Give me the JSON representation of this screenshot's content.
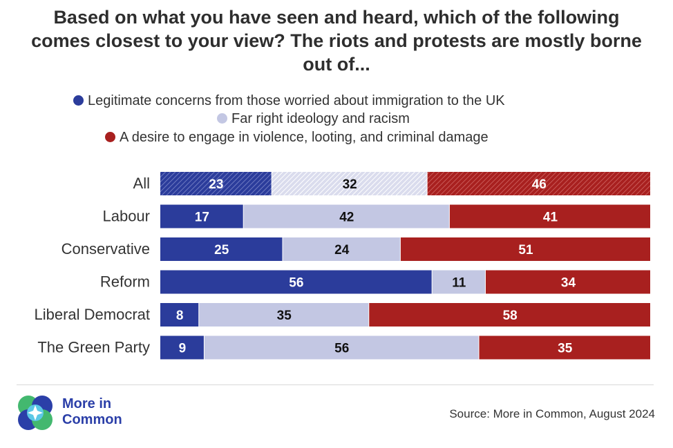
{
  "title": "Based on what you have seen and heard, which of the following comes closest to your view? The riots and protests are mostly borne out of...",
  "legend": [
    {
      "label": "Legitimate concerns from those worried about immigration to the UK",
      "color": "#2b3c9b"
    },
    {
      "label": "Far right ideology and racism",
      "color": "#c3c7e3"
    },
    {
      "label": "A desire to engage in violence, looting, and criminal damage",
      "color": "#a8201f"
    }
  ],
  "chart_data": {
    "type": "bar",
    "orientation": "horizontal",
    "stacked": true,
    "categories": [
      "All",
      "Labour",
      "Conservative",
      "Reform",
      "Liberal Democrat",
      "The Green Party"
    ],
    "series": [
      {
        "name": "Legitimate concerns from those worried about immigration to the UK",
        "color": "#2b3c9b",
        "label_color": "#ffffff",
        "values": [
          23,
          17,
          25,
          56,
          8,
          9
        ]
      },
      {
        "name": "Far right ideology and racism",
        "color": "#c3c7e3",
        "label_color": "#111111",
        "values": [
          32,
          42,
          24,
          11,
          35,
          56
        ]
      },
      {
        "name": "A desire to engage in violence, looting, and criminal damage",
        "color": "#a8201f",
        "label_color": "#ffffff",
        "values": [
          46,
          41,
          51,
          34,
          58,
          35
        ]
      }
    ],
    "hatched_categories": [
      "All"
    ],
    "grid": false
  },
  "footer": {
    "logo_text_line1": "More in",
    "logo_text_line2": "Common",
    "source": "Source: More in Common, August 2024"
  }
}
